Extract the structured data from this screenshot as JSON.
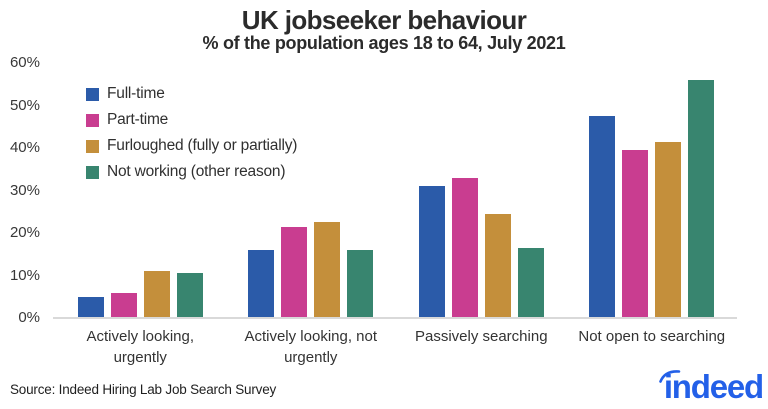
{
  "header": {
    "title": "UK jobseeker behaviour",
    "subtitle": "% of the population ages 18 to 64, July 2021"
  },
  "chart_data": {
    "type": "bar",
    "categories": [
      "Actively looking, urgently",
      "Actively looking, not urgently",
      "Passively searching",
      "Not open to searching"
    ],
    "series": [
      {
        "name": "Full-time",
        "color": "#2b5ba9",
        "values": [
          5,
          16,
          31,
          47.5
        ]
      },
      {
        "name": "Part-time",
        "color": "#c93d90",
        "values": [
          6,
          21.5,
          33,
          39.5
        ]
      },
      {
        "name": "Furloughed (fully or partially)",
        "color": "#c48f3b",
        "values": [
          11,
          22.5,
          24.5,
          41.5
        ]
      },
      {
        "name": "Not working (other reason)",
        "color": "#38856f",
        "values": [
          10.5,
          16,
          16.5,
          56
        ]
      }
    ],
    "title": "UK jobseeker behaviour",
    "subtitle": "% of the population ages 18 to 64, July 2021",
    "xlabel": "",
    "ylabel": "",
    "ylim": [
      0,
      60
    ],
    "yticks": [
      0,
      10,
      20,
      30,
      40,
      50,
      60
    ],
    "ytick_suffix": "%",
    "grid": false,
    "legend_position": "upper-left-inside"
  },
  "footer": {
    "source": "Source: Indeed Hiring Lab Job Search Survey",
    "logo_text": "indeed"
  },
  "colors": {
    "title_text": "#2b2b2b",
    "axis_text": "#383838",
    "baseline": "#d9d9d9",
    "logo_blue": "#2360e8"
  }
}
